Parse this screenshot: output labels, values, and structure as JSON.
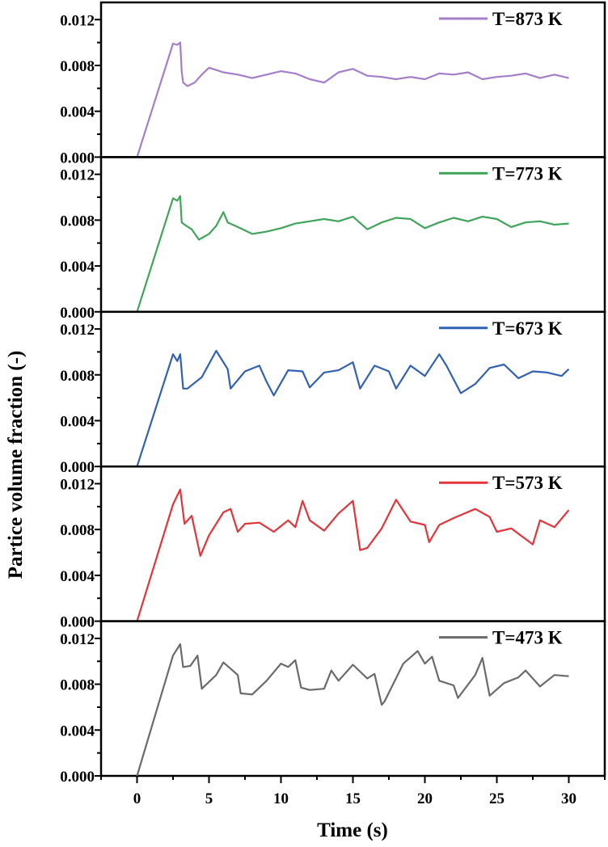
{
  "chart_data": {
    "type": "line",
    "layout": "stacked-panels",
    "xlabel": "Time (s)",
    "ylabel": "Partice volume fraction (-)",
    "xlim": [
      -2.5,
      32.5
    ],
    "ylim": [
      0,
      0.0135
    ],
    "x_ticks": [
      0,
      5,
      10,
      15,
      20,
      25,
      30
    ],
    "x_tick_labels": [
      "0",
      "5",
      "10",
      "15",
      "20",
      "25",
      "30"
    ],
    "y_ticks": [
      0,
      0.004,
      0.008,
      0.012
    ],
    "y_tick_labels": [
      "0.000",
      "0.004",
      "0.008",
      "0.012"
    ],
    "grid": false,
    "legend_position": "top-right",
    "panels": [
      {
        "legend": "T=873 K",
        "color": "#a57ec9",
        "x": [
          0,
          2.5,
          2.8,
          3.0,
          3.1,
          3.2,
          3.5,
          4.0,
          4.5,
          5.0,
          5.5,
          6.0,
          7.0,
          8.0,
          9.0,
          10.0,
          11.0,
          12.0,
          13.0,
          14.0,
          15.0,
          16.0,
          17.0,
          18.0,
          19.0,
          20.0,
          21.0,
          22.0,
          23.0,
          24.0,
          25.0,
          26.0,
          27.0,
          28.0,
          29.0,
          30.0
        ],
        "y": [
          0.0,
          0.0099,
          0.0098,
          0.01,
          0.0075,
          0.0065,
          0.0062,
          0.0065,
          0.0072,
          0.0078,
          0.0076,
          0.0074,
          0.0072,
          0.0069,
          0.0072,
          0.0075,
          0.0073,
          0.0068,
          0.0065,
          0.0074,
          0.0077,
          0.0071,
          0.007,
          0.0068,
          0.007,
          0.0068,
          0.0073,
          0.0072,
          0.0074,
          0.0068,
          0.007,
          0.0071,
          0.0073,
          0.0069,
          0.0072,
          0.0069
        ]
      },
      {
        "legend": "T=773 K",
        "color": "#3fa55a",
        "x": [
          0,
          2.5,
          2.8,
          3.0,
          3.1,
          3.3,
          3.8,
          4.3,
          5.0,
          5.5,
          6.0,
          6.3,
          7.0,
          8.0,
          9.0,
          10.0,
          11.0,
          12.0,
          13.0,
          14.0,
          15.0,
          16.0,
          17.0,
          18.0,
          19.0,
          20.0,
          21.0,
          22.0,
          23.0,
          24.0,
          25.0,
          26.0,
          27.0,
          28.0,
          29.0,
          30.0
        ],
        "y": [
          0.0,
          0.0099,
          0.0097,
          0.0101,
          0.0078,
          0.0076,
          0.0072,
          0.0063,
          0.0068,
          0.0075,
          0.0087,
          0.0078,
          0.0074,
          0.0068,
          0.007,
          0.0073,
          0.0077,
          0.0079,
          0.0081,
          0.0079,
          0.0083,
          0.0072,
          0.0078,
          0.0082,
          0.0081,
          0.0073,
          0.0078,
          0.0082,
          0.0079,
          0.0083,
          0.0081,
          0.0074,
          0.0078,
          0.0079,
          0.0076,
          0.0077
        ]
      },
      {
        "legend": "T=673 K",
        "color": "#3161b2",
        "x": [
          0,
          2.5,
          2.8,
          3.0,
          3.2,
          3.5,
          4.5,
          5.5,
          6.3,
          6.5,
          7.5,
          8.5,
          9.0,
          9.5,
          10.5,
          11.5,
          12.0,
          13.0,
          14.0,
          15.0,
          15.5,
          16.5,
          17.5,
          18.0,
          19.0,
          20.0,
          21.0,
          21.5,
          22.5,
          23.5,
          24.5,
          25.5,
          26.5,
          27.5,
          28.5,
          29.5,
          30.0
        ],
        "y": [
          0.0,
          0.0098,
          0.0092,
          0.0098,
          0.0068,
          0.0068,
          0.0078,
          0.0101,
          0.0085,
          0.0068,
          0.0083,
          0.0088,
          0.0074,
          0.0062,
          0.0084,
          0.0083,
          0.0069,
          0.0082,
          0.0084,
          0.0091,
          0.0068,
          0.0088,
          0.0083,
          0.0068,
          0.0088,
          0.0079,
          0.0098,
          0.0088,
          0.0064,
          0.0072,
          0.0086,
          0.0089,
          0.0077,
          0.0083,
          0.0082,
          0.0079,
          0.0085
        ]
      },
      {
        "legend": "T=573 K",
        "color": "#e3343a",
        "x": [
          0,
          2.5,
          3.0,
          3.3,
          3.8,
          4.4,
          5.0,
          6.0,
          6.5,
          7.0,
          7.5,
          8.5,
          9.5,
          10.5,
          11.0,
          11.5,
          12.0,
          13.0,
          14.0,
          15.0,
          15.5,
          16.0,
          17.0,
          18.0,
          19.0,
          20.0,
          20.3,
          21.0,
          22.0,
          23.5,
          24.5,
          25.0,
          26.0,
          27.5,
          28.0,
          29.0,
          30.0
        ],
        "y": [
          0.0,
          0.0102,
          0.0115,
          0.0085,
          0.0092,
          0.0057,
          0.0075,
          0.0095,
          0.0098,
          0.0078,
          0.0085,
          0.0086,
          0.0078,
          0.0088,
          0.0082,
          0.0105,
          0.0088,
          0.0079,
          0.0094,
          0.0105,
          0.0062,
          0.0064,
          0.0081,
          0.0106,
          0.0087,
          0.0084,
          0.0069,
          0.0084,
          0.009,
          0.0098,
          0.0091,
          0.0078,
          0.0081,
          0.0067,
          0.0088,
          0.0082,
          0.0097
        ]
      },
      {
        "legend": "T=473 K",
        "color": "#6a6a6a",
        "x": [
          0,
          2.5,
          3.0,
          3.2,
          3.7,
          4.2,
          4.5,
          5.5,
          6.0,
          7.0,
          7.2,
          8.0,
          9.0,
          10.0,
          10.5,
          11.0,
          11.4,
          12.0,
          13.0,
          13.5,
          14.0,
          15.0,
          16.0,
          16.5,
          17.0,
          17.2,
          18.5,
          19.5,
          20.0,
          20.5,
          21.0,
          22.0,
          22.3,
          23.5,
          24.0,
          24.5,
          25.5,
          26.5,
          27.0,
          28.0,
          29.0,
          30.0
        ],
        "y": [
          0.0,
          0.0105,
          0.0115,
          0.0095,
          0.0096,
          0.0105,
          0.0076,
          0.0088,
          0.0099,
          0.0088,
          0.0072,
          0.0071,
          0.0083,
          0.0098,
          0.0095,
          0.0101,
          0.0077,
          0.0075,
          0.0076,
          0.0092,
          0.0083,
          0.0097,
          0.0085,
          0.0089,
          0.0062,
          0.0065,
          0.0098,
          0.0109,
          0.0098,
          0.0104,
          0.0083,
          0.0079,
          0.0068,
          0.0088,
          0.0103,
          0.007,
          0.0081,
          0.0086,
          0.0092,
          0.0078,
          0.0088,
          0.0087
        ]
      }
    ]
  }
}
